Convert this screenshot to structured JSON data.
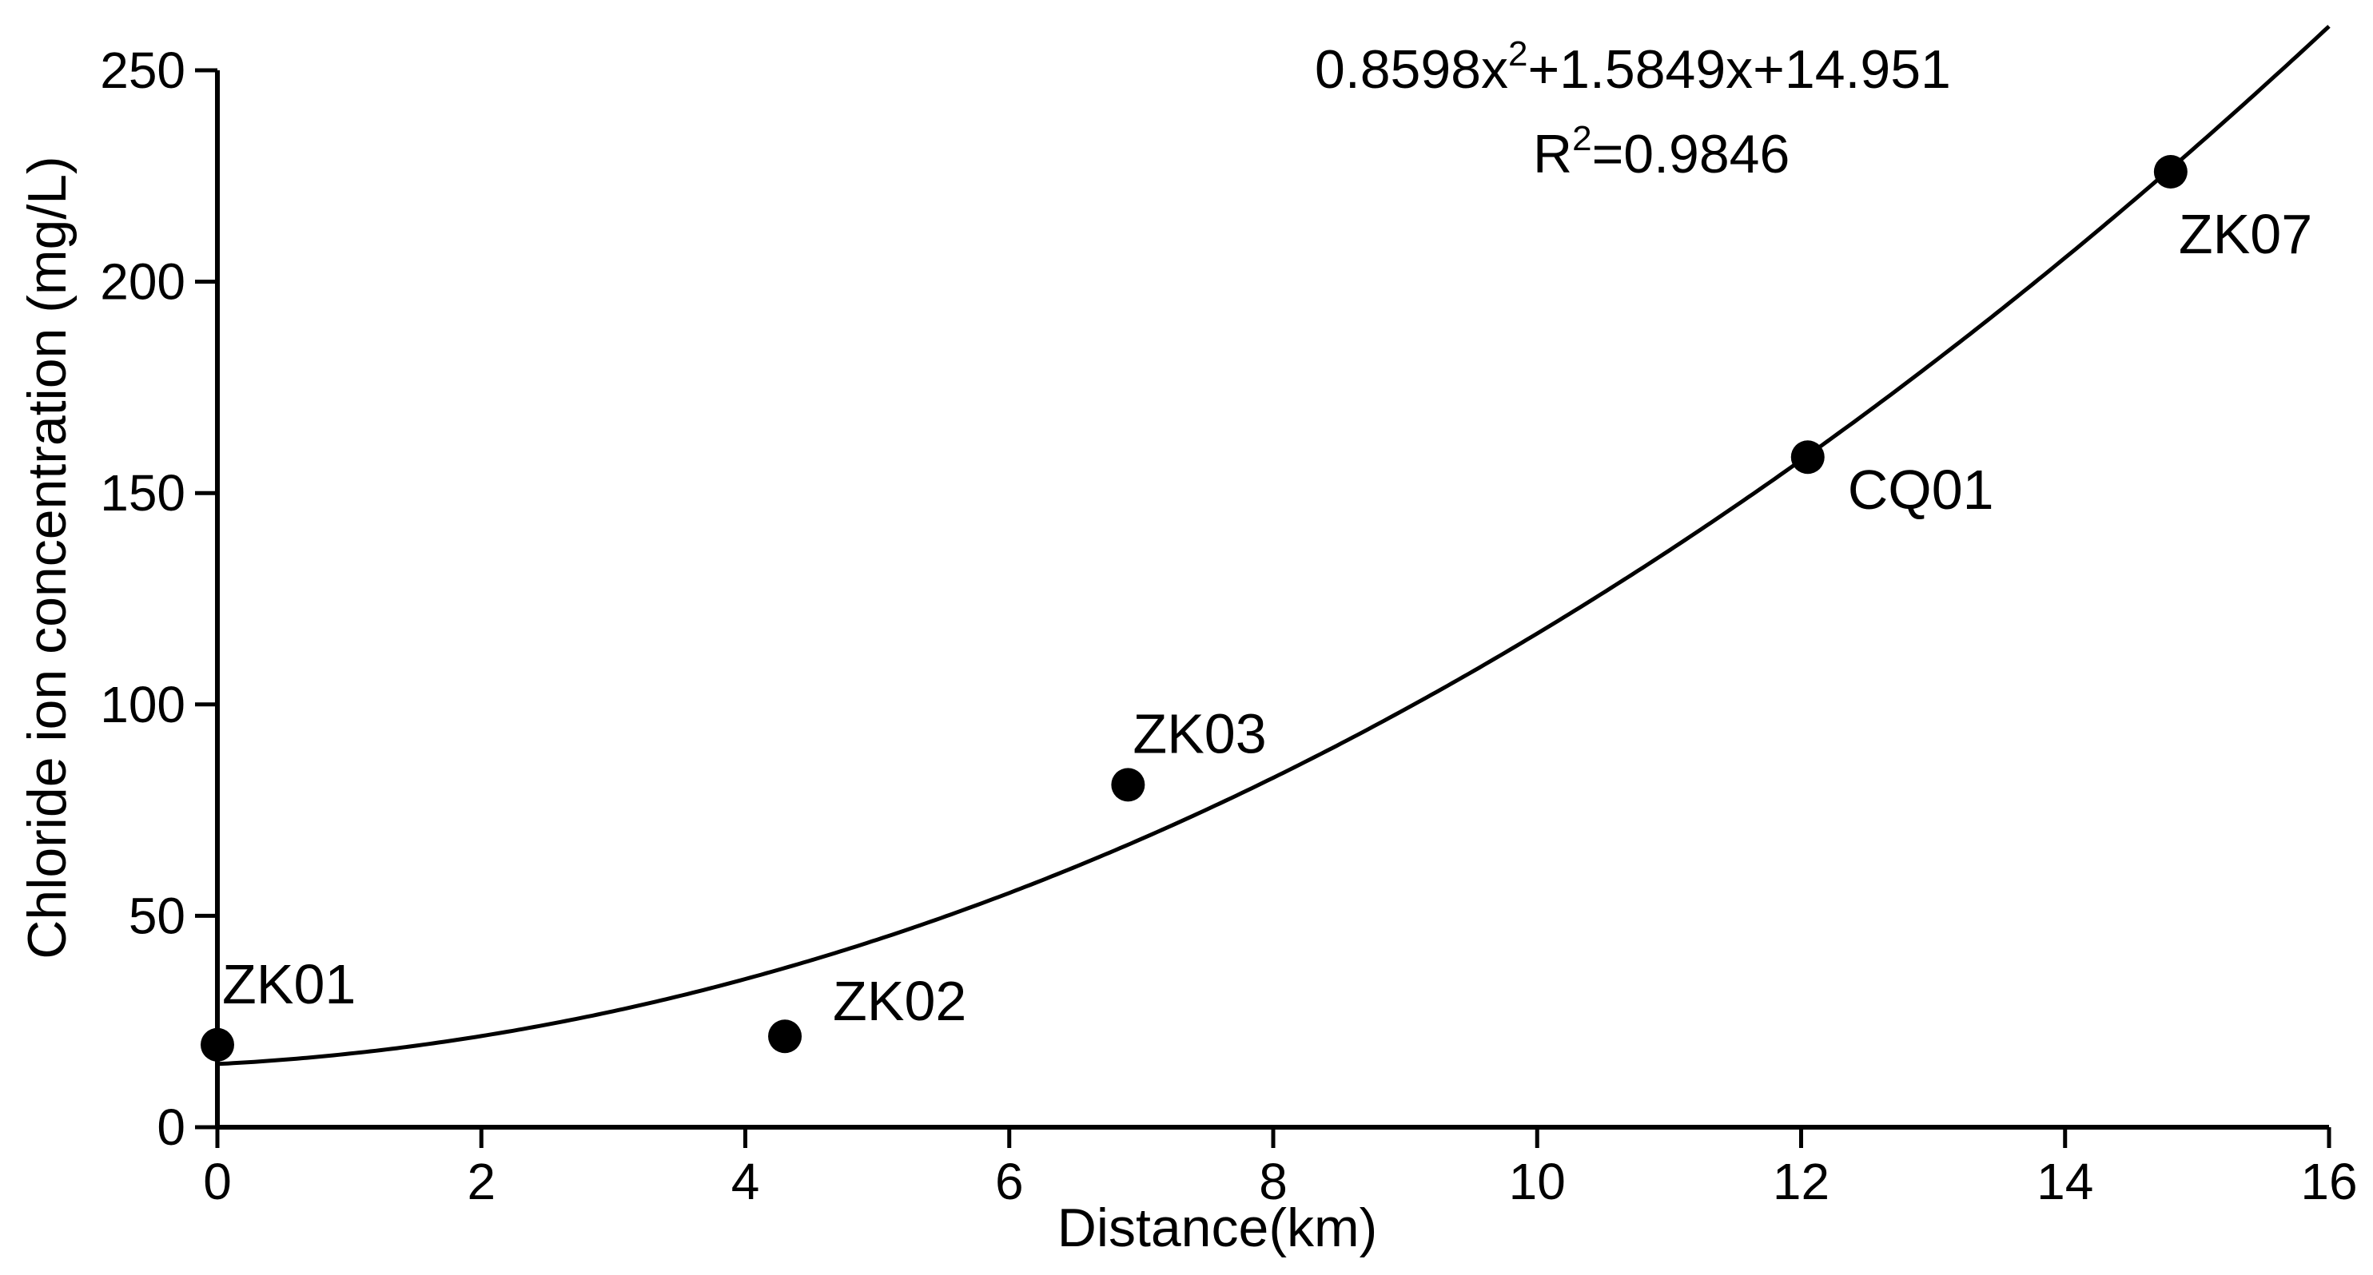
{
  "chart_data": {
    "type": "scatter",
    "title": "",
    "xlabel": "Distance(km)",
    "ylabel": "Chloride ion concentration (mg/L)",
    "xlim": [
      0,
      16
    ],
    "ylim": [
      0,
      250
    ],
    "xticks": [
      0,
      2,
      4,
      6,
      8,
      10,
      12,
      14,
      16
    ],
    "yticks": [
      0,
      50,
      100,
      150,
      200,
      250
    ],
    "grid": false,
    "legend": "none",
    "points": [
      {
        "label": "ZK01",
        "x": 0.0,
        "y": 19.5
      },
      {
        "label": "ZK02",
        "x": 4.3,
        "y": 21.5
      },
      {
        "label": "ZK03",
        "x": 6.9,
        "y": 81.0
      },
      {
        "label": "CQ01",
        "x": 12.05,
        "y": 158.5
      },
      {
        "label": "ZK07",
        "x": 14.8,
        "y": 226.0
      }
    ],
    "fit": {
      "type": "polynomial",
      "coefficients": [
        0.8598,
        1.5849,
        14.951
      ],
      "equation_base": "0.8598x",
      "equation_exp": "2",
      "equation_rest": "+1.5849x+14.951",
      "r2_prefix": "R",
      "r2_exp": "2",
      "r2_rest": "=0.9846"
    },
    "colors": {
      "marks": "#000000",
      "background": "#ffffff"
    }
  }
}
